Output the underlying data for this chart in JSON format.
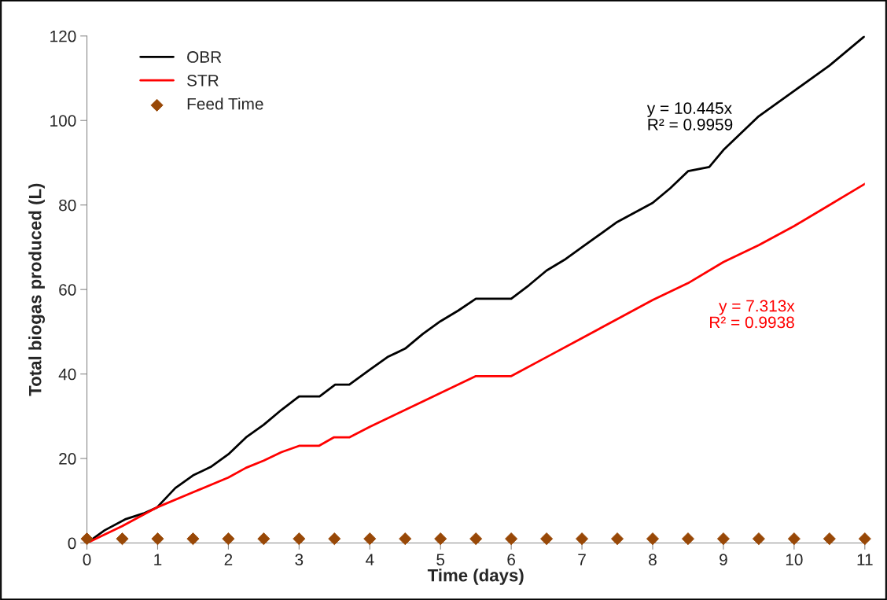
{
  "chart_data": {
    "type": "line",
    "xlabel": "Time (days)",
    "ylabel": "Total biogas produced (L)",
    "series": [
      {
        "name": "OBR",
        "color": "#000000",
        "x": [
          0,
          0.25,
          0.54,
          0.8,
          0.99,
          1.25,
          1.5,
          1.75,
          2,
          2.25,
          2.5,
          2.75,
          3.0,
          3.29,
          3.51,
          3.71,
          4,
          4.25,
          4.5,
          4.75,
          5,
          5.25,
          5.5,
          6.0,
          6.25,
          6.5,
          6.75,
          7,
          7.5,
          8,
          8.25,
          8.5,
          8.8,
          9,
          9.5,
          10,
          10.5,
          11
        ],
        "values": [
          0,
          3,
          5.6,
          7,
          8.4,
          13,
          16,
          18,
          21,
          25,
          28,
          31.5,
          34.7,
          34.7,
          37.5,
          37.5,
          41,
          44,
          46,
          49.5,
          52.5,
          55,
          57.8,
          57.8,
          61,
          64.5,
          67,
          70,
          76,
          80.5,
          84,
          88,
          89,
          93,
          101,
          107,
          113,
          120
        ]
      },
      {
        "name": "STR",
        "color": "#ff0000",
        "x": [
          0,
          0.5,
          1,
          1.5,
          2,
          2.25,
          2.5,
          2.75,
          3.0,
          3.28,
          3.49,
          3.71,
          4,
          4.5,
          5,
          5.5,
          6.0,
          6.5,
          7,
          7.5,
          8,
          8.5,
          9,
          9.5,
          10,
          10.5,
          11
        ],
        "values": [
          0,
          4,
          8.5,
          12,
          15.5,
          17.8,
          19.5,
          21.5,
          23.0,
          23.0,
          25.0,
          25.0,
          27.5,
          31.5,
          35.5,
          39.5,
          39.5,
          44,
          48.5,
          53,
          57.5,
          61.5,
          66.5,
          70.5,
          75,
          80,
          85
        ]
      },
      {
        "name": "Feed Time",
        "type": "scatter",
        "color": "#984807",
        "marker": "diamond",
        "x": [
          0,
          0.5,
          1,
          1.5,
          2,
          2.5,
          3,
          3.5,
          4,
          4.5,
          5,
          5.5,
          6,
          6.5,
          7,
          7.5,
          8,
          8.5,
          9,
          9.5,
          10,
          10.5,
          11
        ],
        "values": [
          1,
          1,
          1,
          1,
          1,
          1,
          1,
          1,
          1,
          1,
          1,
          1,
          1,
          1,
          1,
          1,
          1,
          1,
          1,
          1,
          1,
          1,
          1
        ]
      }
    ],
    "annotations": [
      "y = 10.445x\nR² = 0.9959",
      "y = 7.313x\nR² = 0.9938"
    ],
    "xlim": [
      0,
      11
    ],
    "xticks": [
      0,
      1,
      2,
      3,
      4,
      5,
      6,
      7,
      8,
      9,
      10,
      11
    ],
    "ylim": [
      0,
      120
    ],
    "yticks": [
      0,
      20,
      40,
      60,
      80,
      100,
      120
    ],
    "grid": false,
    "legend": "top left",
    "marker": "none",
    "line_style": "solid"
  }
}
